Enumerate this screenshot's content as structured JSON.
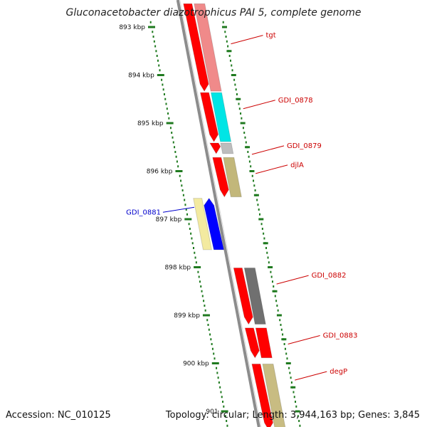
{
  "title": "Gluconacetobacter diazotrophicus PAI 5, complete genome",
  "footer": {
    "accession": "Accession: NC_010125",
    "stats": "Topology: circular; Length: 3,944,163 bp; Genes: 3,845"
  },
  "colors": {
    "backbone": "#8c8c8c",
    "tick": "#1f7a1f",
    "label_forward": "#cc0000",
    "label_reverse": "#0000cc",
    "cds_forward": "#ff0000",
    "cds_reverse": "#0000ff"
  },
  "axis": {
    "start_kbp": 893,
    "end_kbp": 901,
    "major_ticks": [
      {
        "kbp": 893,
        "label": "893 kbp"
      },
      {
        "kbp": 894,
        "label": "894 kbp"
      },
      {
        "kbp": 895,
        "label": "895 kbp"
      },
      {
        "kbp": 896,
        "label": "896 kbp"
      },
      {
        "kbp": 897,
        "label": "897 kbp"
      },
      {
        "kbp": 898,
        "label": "898 kbp"
      },
      {
        "kbp": 899,
        "label": "899 kbp"
      },
      {
        "kbp": 900,
        "label": "900 kbp"
      },
      {
        "kbp": 901,
        "label": "901"
      }
    ]
  },
  "genes": [
    {
      "name": "tgt",
      "strand": "+",
      "start_kbp": 892.5,
      "end_kbp": 894.35,
      "color": "#f08a8a",
      "label_color": "#cc0000"
    },
    {
      "name": "GDI_0878",
      "strand": "+",
      "start_kbp": 894.35,
      "end_kbp": 895.4,
      "color": "#00e5e5",
      "label_color": "#cc0000"
    },
    {
      "name": "GDI_0879",
      "strand": "+",
      "start_kbp": 895.4,
      "end_kbp": 895.65,
      "color": "#bdbdbd",
      "label_color": "#cc0000"
    },
    {
      "name": "djlA",
      "strand": "+",
      "start_kbp": 895.7,
      "end_kbp": 896.55,
      "color": "#c2b77a",
      "label_color": "#cc0000"
    },
    {
      "name": "GDI_0881",
      "strand": "-",
      "start_kbp": 896.55,
      "end_kbp": 897.65,
      "color": "#f3eaa0",
      "label_color": "#0000cc"
    },
    {
      "name": "GDI_0882",
      "strand": "+",
      "start_kbp": 898.0,
      "end_kbp": 899.2,
      "color": "#707070",
      "label_color": "#cc0000"
    },
    {
      "name": "GDI_0883",
      "strand": "+",
      "start_kbp": 899.25,
      "end_kbp": 899.9,
      "color": "#ff0000",
      "label_color": "#cc0000"
    },
    {
      "name": "degP",
      "strand": "+",
      "start_kbp": 900.0,
      "end_kbp": 901.4,
      "color": "#c8bc82",
      "label_color": "#cc0000"
    }
  ]
}
